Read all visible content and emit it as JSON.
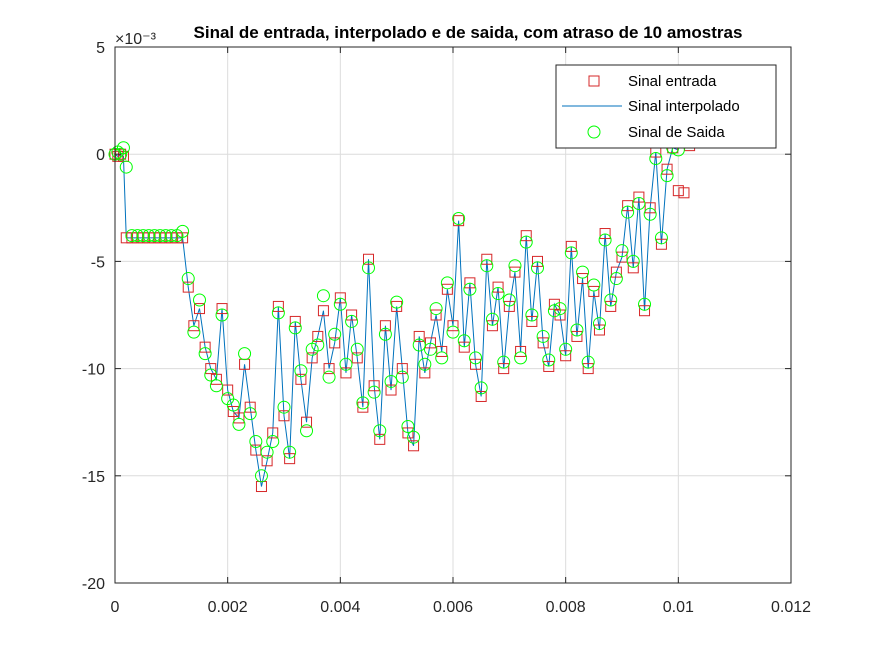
{
  "chart_data": {
    "type": "line",
    "title": "Sinal de entrada, interpolado e de saida, com atraso de 10 amostras",
    "exponent_label": "×10⁻³",
    "xlim": [
      0,
      0.012
    ],
    "ylim": [
      -20,
      5
    ],
    "x_ticks": [
      0,
      0.002,
      0.004,
      0.006,
      0.008,
      0.01,
      0.012
    ],
    "x_tick_labels": [
      "0",
      "0.002",
      "0.004",
      "0.006",
      "0.008",
      "0.01",
      "0.012"
    ],
    "y_ticks": [
      5,
      0,
      -5,
      -10,
      -15,
      -20
    ],
    "y_tick_labels": [
      "5",
      "0",
      "-5",
      "-10",
      "-15",
      "-20"
    ],
    "grid": true,
    "legend_position": "top-right",
    "colors": {
      "entrada": "#d62728",
      "interpolado": "#0072bd",
      "saida": "#00ff00",
      "axis": "#262626",
      "grid": "#dcdcdc"
    },
    "series": [
      {
        "name": "Sinal entrada",
        "marker": "square",
        "x": [
          0.0,
          5e-05,
          0.0001,
          0.00015,
          0.0002,
          0.0003,
          0.0004,
          0.0005,
          0.0006,
          0.0007,
          0.0008,
          0.0009,
          0.001,
          0.0011,
          0.0012,
          0.0013,
          0.0014,
          0.0015,
          0.0016,
          0.0017,
          0.0018,
          0.0019,
          0.002,
          0.0021,
          0.0022,
          0.0023,
          0.0024,
          0.0025,
          0.0026,
          0.0027,
          0.0028,
          0.0029,
          0.003,
          0.0031,
          0.0032,
          0.0033,
          0.0034,
          0.0035,
          0.0036,
          0.0037,
          0.0038,
          0.0039,
          0.004,
          0.0041,
          0.0042,
          0.0043,
          0.0044,
          0.0045,
          0.0046,
          0.0047,
          0.0048,
          0.0049,
          0.005,
          0.0051,
          0.0052,
          0.0053,
          0.0054,
          0.0055,
          0.0056,
          0.0057,
          0.0058,
          0.0059,
          0.006,
          0.0061,
          0.0062,
          0.0063,
          0.0064,
          0.0065,
          0.0066,
          0.0067,
          0.0068,
          0.0069,
          0.007,
          0.0071,
          0.0072,
          0.0073,
          0.0074,
          0.0075,
          0.0076,
          0.0077,
          0.0078,
          0.0079,
          0.008,
          0.0081,
          0.0082,
          0.0083,
          0.0084,
          0.0085,
          0.0086,
          0.0087,
          0.0088,
          0.0089,
          0.009,
          0.0091,
          0.0092,
          0.0093,
          0.0094,
          0.0095,
          0.0096,
          0.0097,
          0.0098,
          0.0099,
          0.01,
          0.0101,
          0.0102
        ],
        "y": [
          0,
          -0.0001,
          0,
          -0.0001,
          -0.0039,
          -0.0039,
          -0.0039,
          -0.0039,
          -0.0039,
          -0.0039,
          -0.0039,
          -0.0039,
          -0.0039,
          -0.0039,
          -0.0039,
          -0.0062,
          -0.008,
          -0.0072,
          -0.009,
          -0.01,
          -0.0105,
          -0.0072,
          -0.011,
          -0.012,
          -0.0123,
          -0.0098,
          -0.0118,
          -0.0138,
          -0.0155,
          -0.0143,
          -0.013,
          -0.0071,
          -0.0122,
          -0.0142,
          -0.0078,
          -0.0105,
          -0.0125,
          -0.0095,
          -0.0085,
          -0.0073,
          -0.01,
          -0.0088,
          -0.0067,
          -0.0102,
          -0.0075,
          -0.0095,
          -0.0118,
          -0.0049,
          -0.0108,
          -0.0133,
          -0.008,
          -0.011,
          -0.0071,
          -0.01,
          -0.013,
          -0.0136,
          -0.0085,
          -0.0102,
          -0.0088,
          -0.0075,
          -0.0092,
          -0.0063,
          -0.008,
          -0.0031,
          -0.009,
          -0.006,
          -0.0098,
          -0.0113,
          -0.0049,
          -0.008,
          -0.0062,
          -0.01,
          -0.0071,
          -0.0055,
          -0.0092,
          -0.0038,
          -0.0078,
          -0.005,
          -0.0088,
          -0.0099,
          -0.007,
          -0.0075,
          -0.0094,
          -0.0043,
          -0.0085,
          -0.0058,
          -0.01,
          -0.0064,
          -0.0082,
          -0.0037,
          -0.0071,
          -0.0055,
          -0.0048,
          -0.0024,
          -0.0053,
          -0.002,
          -0.0073,
          -0.0025,
          0.0001,
          -0.0042,
          -0.0007,
          0.0003,
          -0.0017,
          -0.0018,
          0.0004
        ]
      },
      {
        "name": "Sinal interpolado",
        "marker": "line",
        "x": [
          0.0,
          5e-05,
          0.0001,
          0.00015,
          0.0002,
          0.0003,
          0.0004,
          0.0005,
          0.0006,
          0.0007,
          0.0008,
          0.0009,
          0.001,
          0.0011,
          0.0012,
          0.0013,
          0.0014,
          0.0015,
          0.0016,
          0.0017,
          0.0018,
          0.0019,
          0.002,
          0.0021,
          0.0022,
          0.0023,
          0.0024,
          0.0025,
          0.0026,
          0.0027,
          0.0028,
          0.0029,
          0.003,
          0.0031,
          0.0032,
          0.0033,
          0.0034,
          0.0035,
          0.0036,
          0.0037,
          0.0038,
          0.0039,
          0.004,
          0.0041,
          0.0042,
          0.0043,
          0.0044,
          0.0045,
          0.0046,
          0.0047,
          0.0048,
          0.0049,
          0.005,
          0.0051,
          0.0052,
          0.0053,
          0.0054,
          0.0055,
          0.0056,
          0.0057,
          0.0058,
          0.0059,
          0.006,
          0.0061,
          0.0062,
          0.0063,
          0.0064,
          0.0065,
          0.0066,
          0.0067,
          0.0068,
          0.0069,
          0.007,
          0.0071,
          0.0072,
          0.0073,
          0.0074,
          0.0075,
          0.0076,
          0.0077,
          0.0078,
          0.0079,
          0.008,
          0.0081,
          0.0082,
          0.0083,
          0.0084,
          0.0085,
          0.0086,
          0.0087,
          0.0088,
          0.0089,
          0.009,
          0.0091,
          0.0092,
          0.0093,
          0.0094,
          0.0095,
          0.0096,
          0.0097,
          0.0098,
          0.0099,
          0.01
        ],
        "y": [
          0,
          -0.0001,
          0,
          -0.0001,
          -0.0039,
          -0.0039,
          -0.0039,
          -0.0039,
          -0.0039,
          -0.0039,
          -0.0039,
          -0.0039,
          -0.0039,
          -0.0039,
          -0.0039,
          -0.0062,
          -0.008,
          -0.0072,
          -0.009,
          -0.01,
          -0.0105,
          -0.0072,
          -0.011,
          -0.012,
          -0.0123,
          -0.0098,
          -0.0118,
          -0.0138,
          -0.0155,
          -0.0143,
          -0.013,
          -0.0071,
          -0.0122,
          -0.0142,
          -0.0078,
          -0.0105,
          -0.0125,
          -0.0095,
          -0.0085,
          -0.0073,
          -0.01,
          -0.0088,
          -0.0067,
          -0.0102,
          -0.0075,
          -0.0095,
          -0.0118,
          -0.0049,
          -0.0108,
          -0.0133,
          -0.008,
          -0.011,
          -0.0071,
          -0.01,
          -0.013,
          -0.0136,
          -0.0085,
          -0.0102,
          -0.0088,
          -0.0075,
          -0.0092,
          -0.0063,
          -0.008,
          -0.0031,
          -0.009,
          -0.006,
          -0.0098,
          -0.0113,
          -0.0049,
          -0.008,
          -0.0062,
          -0.01,
          -0.0071,
          -0.0055,
          -0.0092,
          -0.0038,
          -0.0078,
          -0.005,
          -0.0088,
          -0.0099,
          -0.007,
          -0.0075,
          -0.0094,
          -0.0043,
          -0.0085,
          -0.0058,
          -0.01,
          -0.0064,
          -0.0082,
          -0.0037,
          -0.0071,
          -0.0055,
          -0.0048,
          -0.0024,
          -0.0053,
          -0.002,
          -0.0073,
          -0.0025,
          0.0001,
          -0.0042,
          -0.0007,
          0.0003,
          0.0002
        ]
      },
      {
        "name": "Sinal de Saida",
        "marker": "circle",
        "x": [
          0.0,
          5e-05,
          0.0001,
          0.00015,
          0.0002,
          0.0003,
          0.0004,
          0.0005,
          0.0006,
          0.0007,
          0.0008,
          0.0009,
          0.001,
          0.0011,
          0.0012,
          0.0013,
          0.0014,
          0.0015,
          0.0016,
          0.0017,
          0.0018,
          0.0019,
          0.002,
          0.0021,
          0.0022,
          0.0023,
          0.0024,
          0.0025,
          0.0026,
          0.0027,
          0.0028,
          0.0029,
          0.003,
          0.0031,
          0.0032,
          0.0033,
          0.0034,
          0.0035,
          0.0036,
          0.0037,
          0.0038,
          0.0039,
          0.004,
          0.0041,
          0.0042,
          0.0043,
          0.0044,
          0.0045,
          0.0046,
          0.0047,
          0.0048,
          0.0049,
          0.005,
          0.0051,
          0.0052,
          0.0053,
          0.0054,
          0.0055,
          0.0056,
          0.0057,
          0.0058,
          0.0059,
          0.006,
          0.0061,
          0.0062,
          0.0063,
          0.0064,
          0.0065,
          0.0066,
          0.0067,
          0.0068,
          0.0069,
          0.007,
          0.0071,
          0.0072,
          0.0073,
          0.0074,
          0.0075,
          0.0076,
          0.0077,
          0.0078,
          0.0079,
          0.008,
          0.0081,
          0.0082,
          0.0083,
          0.0084,
          0.0085,
          0.0086,
          0.0087,
          0.0088,
          0.0089,
          0.009,
          0.0091,
          0.0092,
          0.0093,
          0.0094,
          0.0095,
          0.0096,
          0.0097,
          0.0098,
          0.0099,
          0.01
        ],
        "y": [
          0,
          0.0001,
          0,
          0.0003,
          -0.0006,
          -0.0038,
          -0.0038,
          -0.0038,
          -0.0038,
          -0.0038,
          -0.0038,
          -0.0038,
          -0.0038,
          -0.0038,
          -0.0036,
          -0.0058,
          -0.0083,
          -0.0068,
          -0.0093,
          -0.0103,
          -0.0108,
          -0.0075,
          -0.0114,
          -0.0117,
          -0.0126,
          -0.0093,
          -0.0121,
          -0.0134,
          -0.015,
          -0.0139,
          -0.0134,
          -0.0074,
          -0.0118,
          -0.0139,
          -0.0081,
          -0.0101,
          -0.0129,
          -0.0091,
          -0.0089,
          -0.0066,
          -0.0104,
          -0.0084,
          -0.007,
          -0.0098,
          -0.0078,
          -0.0091,
          -0.0116,
          -0.0053,
          -0.0111,
          -0.0129,
          -0.0084,
          -0.0106,
          -0.0069,
          -0.0104,
          -0.0127,
          -0.0132,
          -0.0089,
          -0.0098,
          -0.0091,
          -0.0072,
          -0.0095,
          -0.006,
          -0.0083,
          -0.003,
          -0.0087,
          -0.0063,
          -0.0095,
          -0.0109,
          -0.0052,
          -0.0077,
          -0.0065,
          -0.0097,
          -0.0068,
          -0.0052,
          -0.0095,
          -0.0041,
          -0.0075,
          -0.0053,
          -0.0085,
          -0.0096,
          -0.0073,
          -0.0072,
          -0.0091,
          -0.0046,
          -0.0082,
          -0.0055,
          -0.0097,
          -0.0061,
          -0.0079,
          -0.004,
          -0.0068,
          -0.0058,
          -0.0045,
          -0.0027,
          -0.005,
          -0.0023,
          -0.007,
          -0.0028,
          -0.0002,
          -0.0039,
          -0.001,
          0.0003,
          0.0002
        ]
      }
    ]
  }
}
